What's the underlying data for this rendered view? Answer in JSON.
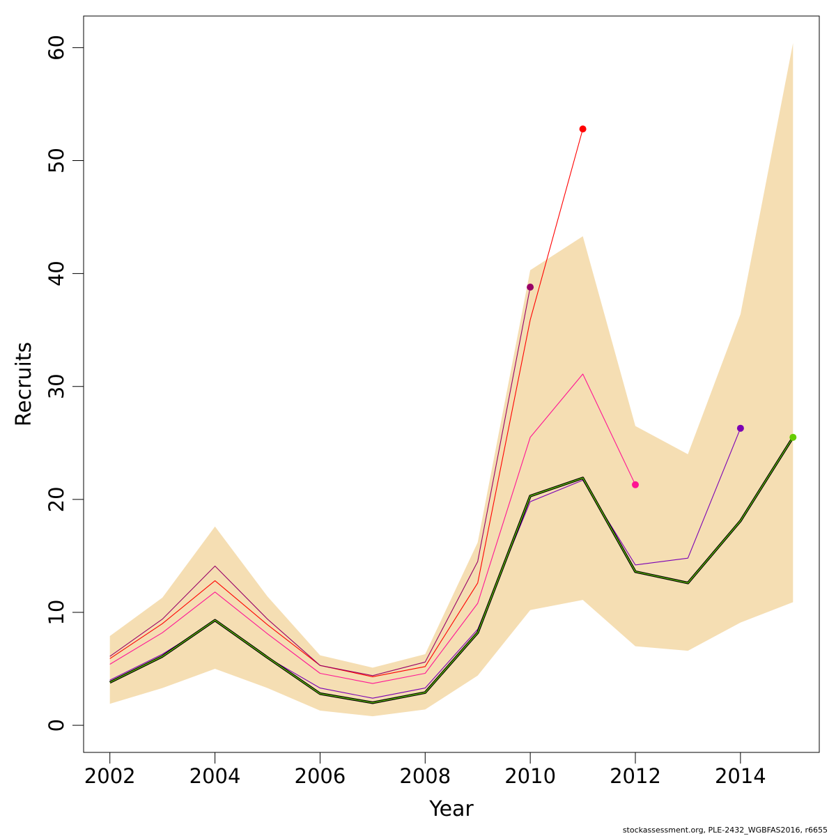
{
  "chart_data": {
    "type": "line",
    "title": "",
    "xlabel": "Year",
    "ylabel": "Recruits",
    "xlim": [
      2001.5,
      2015.5
    ],
    "ylim": [
      -2.4,
      62.8
    ],
    "x_ticks": [
      2002,
      2004,
      2006,
      2008,
      2010,
      2012,
      2014
    ],
    "y_ticks": [
      0,
      10,
      20,
      30,
      40,
      50,
      60
    ],
    "grid": false,
    "legend": "none",
    "band": {
      "color": "#F5DEB3",
      "x": [
        2002,
        2003,
        2004,
        2005,
        2006,
        2007,
        2008,
        2009,
        2010,
        2011,
        2012,
        2013,
        2014,
        2015
      ],
      "lower": [
        1.9,
        3.3,
        5.0,
        3.3,
        1.3,
        0.8,
        1.4,
        4.4,
        10.2,
        11.1,
        7.0,
        6.6,
        9.1,
        10.9
      ],
      "upper": [
        7.9,
        11.3,
        17.6,
        11.4,
        6.2,
        5.1,
        6.3,
        16.2,
        40.3,
        43.3,
        26.5,
        24.0,
        36.4,
        60.4
      ]
    },
    "series": [
      {
        "color": "#FF0000",
        "x": [
          2002,
          2003,
          2004,
          2005,
          2006,
          2007,
          2008,
          2009,
          2010,
          2011
        ],
        "values": [
          5.9,
          9.0,
          12.8,
          8.9,
          5.3,
          4.3,
          5.2,
          12.6,
          35.9,
          52.8
        ],
        "endpoint": true
      },
      {
        "color": "#990066",
        "x": [
          2002,
          2003,
          2004,
          2005,
          2006,
          2007,
          2008,
          2009,
          2010
        ],
        "values": [
          6.1,
          9.4,
          14.1,
          9.4,
          5.3,
          4.4,
          5.6,
          14.5,
          38.8
        ],
        "endpoint": true
      },
      {
        "color": "#FF1493",
        "x": [
          2002,
          2003,
          2004,
          2005,
          2006,
          2007,
          2008,
          2009,
          2010,
          2011,
          2012
        ],
        "values": [
          5.4,
          8.2,
          11.8,
          8.1,
          4.6,
          3.7,
          4.6,
          10.8,
          25.5,
          31.1,
          21.3
        ],
        "endpoint": true
      },
      {
        "color": "#7B00B4",
        "x": [
          2002,
          2003,
          2004,
          2005,
          2006,
          2007,
          2008,
          2009,
          2010,
          2011,
          2012,
          2013,
          2014
        ],
        "values": [
          4.0,
          6.3,
          9.2,
          6.0,
          3.3,
          2.4,
          3.3,
          8.5,
          19.8,
          21.7,
          14.2,
          14.8,
          26.3
        ],
        "endpoint": true
      },
      {
        "color": "#000000",
        "width": 3.6,
        "x": [
          2002,
          2003,
          2004,
          2005,
          2006,
          2007,
          2008,
          2009,
          2010,
          2011,
          2012,
          2013,
          2014,
          2015
        ],
        "values": [
          3.8,
          6.1,
          9.3,
          6.0,
          2.8,
          2.0,
          2.9,
          8.2,
          20.3,
          21.9,
          13.6,
          12.6,
          18.1,
          25.5
        ],
        "endpoint": false
      },
      {
        "color": "#66CC00",
        "width": 1.2,
        "x": [
          2002,
          2003,
          2004,
          2005,
          2006,
          2007,
          2008,
          2009,
          2010,
          2011,
          2012,
          2013,
          2014,
          2015
        ],
        "values": [
          3.8,
          6.1,
          9.3,
          6.0,
          2.8,
          2.0,
          2.9,
          8.2,
          20.3,
          21.9,
          13.6,
          12.6,
          18.1,
          25.5
        ],
        "endpoint": true
      }
    ]
  },
  "footer": {
    "note": "stockassessment.org, PLE-2432_WGBFAS2016, r6655"
  }
}
